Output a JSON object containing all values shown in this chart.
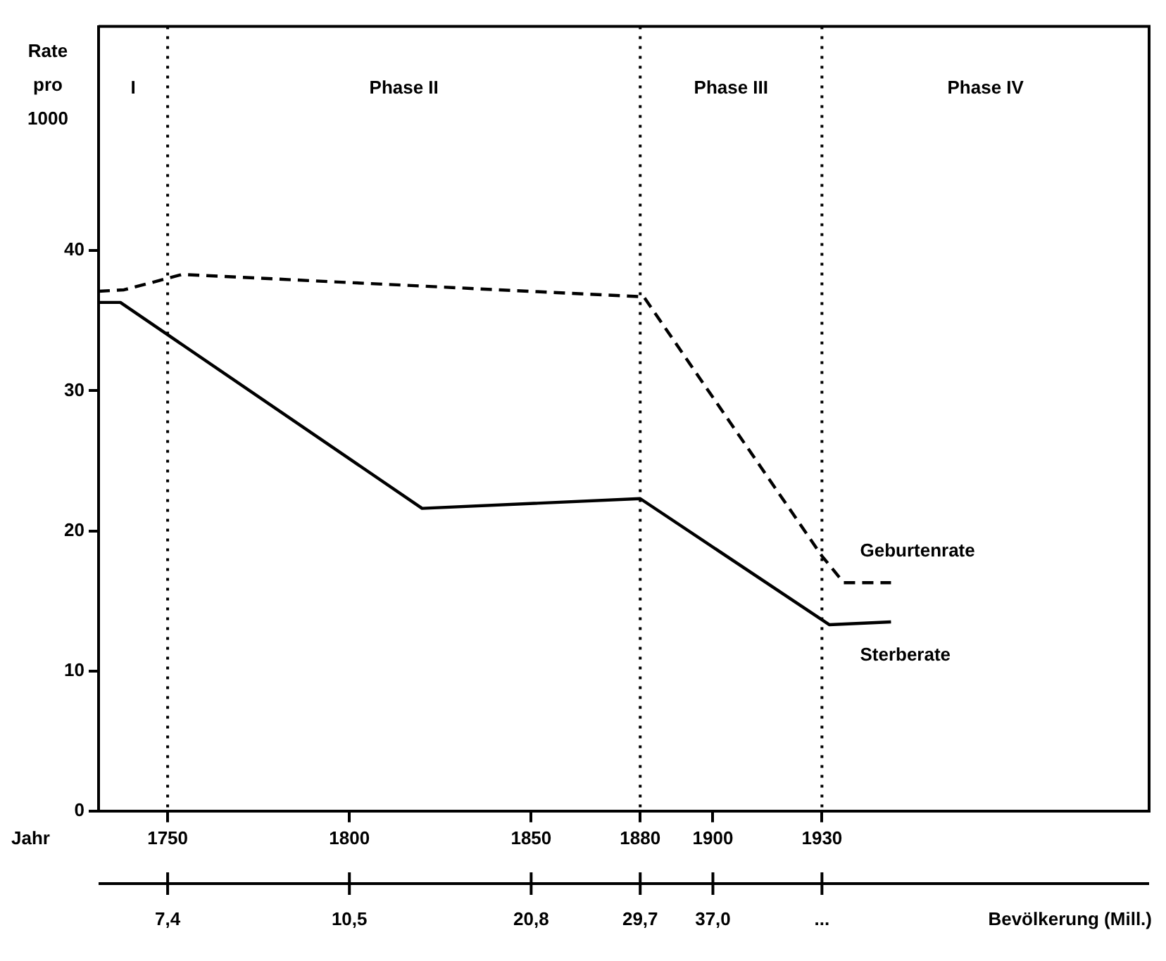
{
  "chart_data": {
    "type": "line",
    "xlabel": "Jahr",
    "ylabel": "Rate pro 1000",
    "x2label": "Bevölkerung (Mill.)",
    "xlim": [
      1731,
      2020
    ],
    "xticks": [
      1750,
      1800,
      1850,
      1880,
      1900,
      1930
    ],
    "ylim": [
      0,
      56
    ],
    "yticks": [
      0,
      10,
      20,
      30,
      40
    ],
    "series": [
      {
        "name": "Geburtenrate",
        "color": "#000000",
        "line_style": "dashed",
        "x": [
          1731,
          1738,
          1754,
          1881,
          1930,
          1936,
          1949
        ],
        "values": [
          37.1,
          37.2,
          38.3,
          36.7,
          18.2,
          16.3,
          16.3
        ]
      },
      {
        "name": "Sterberate",
        "color": "#000000",
        "line_style": "solid",
        "x": [
          1731,
          1737,
          1820,
          1880,
          1932,
          1949
        ],
        "values": [
          36.3,
          36.3,
          21.6,
          22.3,
          13.3,
          13.5
        ]
      }
    ],
    "ref_lines": [
      {
        "axis": "x",
        "value": 1750,
        "line_style": "dotted"
      },
      {
        "axis": "x",
        "value": 1880,
        "line_style": "dotted"
      },
      {
        "axis": "x",
        "value": 1930,
        "line_style": "dotted"
      }
    ],
    "annotations": [
      "I",
      "Phase II",
      "Phase III",
      "Phase IV",
      "7,4",
      "10,5",
      "20,8",
      "29,7",
      "37,0",
      "..."
    ]
  }
}
